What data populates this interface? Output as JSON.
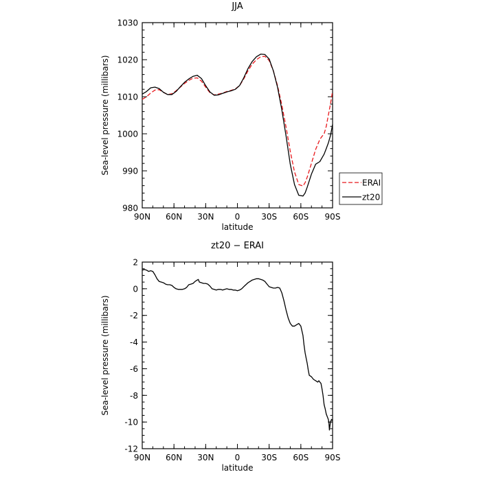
{
  "chart_data": [
    {
      "type": "line",
      "title": "JJA",
      "xlabel": "latitude",
      "ylabel": "Sea-level pressure (millibars)",
      "xlim": [
        90,
        -90
      ],
      "ylim": [
        980,
        1030
      ],
      "x_ticks": [
        {
          "value": 90,
          "label": "90N"
        },
        {
          "value": 60,
          "label": "60N"
        },
        {
          "value": 30,
          "label": "30N"
        },
        {
          "value": 0,
          "label": "0"
        },
        {
          "value": -30,
          "label": "30S"
        },
        {
          "value": -60,
          "label": "60S"
        },
        {
          "value": -90,
          "label": "90S"
        }
      ],
      "y_ticks": [
        980,
        990,
        1000,
        1010,
        1020,
        1030
      ],
      "x_minor_step": 10,
      "y_minor_step": 2,
      "legend": {
        "placement": "right"
      },
      "series": [
        {
          "name": "ERAI",
          "color": "#e8171b",
          "dash": "dashed",
          "x": [
            90,
            86,
            82,
            78,
            74,
            70,
            66,
            62,
            58,
            54,
            50,
            46,
            42,
            38,
            34,
            30,
            26,
            22,
            18,
            14,
            10,
            6,
            2,
            -2,
            -6,
            -10,
            -14,
            -18,
            -22,
            -26,
            -30,
            -34,
            -38,
            -42,
            -46,
            -50,
            -54,
            -58,
            -62,
            -64,
            -66,
            -70,
            -74,
            -78,
            -80,
            -82,
            -84,
            -86,
            -88,
            -90
          ],
          "y": [
            1009.3,
            1010.0,
            1011.0,
            1011.8,
            1011.9,
            1011.2,
            1010.6,
            1010.8,
            1011.6,
            1012.6,
            1013.6,
            1014.4,
            1015.0,
            1015.1,
            1014.2,
            1012.6,
            1011.1,
            1010.5,
            1010.7,
            1011.0,
            1011.4,
            1011.7,
            1012.1,
            1013.0,
            1014.8,
            1017.0,
            1018.8,
            1020.0,
            1020.8,
            1020.9,
            1019.8,
            1017.0,
            1012.9,
            1007.8,
            1001.8,
            995.3,
            989.7,
            986.3,
            985.9,
            986.8,
            988.3,
            992.0,
            995.8,
            998.5,
            999.3,
            1000.0,
            1002.0,
            1005.0,
            1008.0,
            1011.5
          ]
        },
        {
          "name": "zt20",
          "color": "#000000",
          "dash": "solid",
          "x": [
            90,
            86,
            82,
            78,
            74,
            70,
            66,
            62,
            58,
            54,
            50,
            46,
            42,
            38,
            34,
            30,
            26,
            22,
            18,
            14,
            10,
            6,
            2,
            -2,
            -6,
            -10,
            -14,
            -18,
            -22,
            -26,
            -30,
            -34,
            -38,
            -42,
            -46,
            -50,
            -54,
            -58,
            -62,
            -64,
            -66,
            -70,
            -74,
            -78,
            -80,
            -82,
            -84,
            -86,
            -88,
            -90
          ],
          "y": [
            1010.7,
            1011.4,
            1012.4,
            1012.6,
            1012.2,
            1011.2,
            1010.6,
            1010.6,
            1011.4,
            1012.7,
            1013.9,
            1014.8,
            1015.5,
            1015.8,
            1014.9,
            1013.0,
            1011.3,
            1010.4,
            1010.5,
            1010.9,
            1011.3,
            1011.6,
            1012.0,
            1013.0,
            1015.1,
            1017.6,
            1019.5,
            1020.8,
            1021.5,
            1021.4,
            1020.2,
            1017.0,
            1012.5,
            1006.5,
            999.4,
            991.8,
            986.3,
            983.4,
            983.2,
            984.0,
            985.6,
            989.1,
            991.8,
            992.5,
            993.5,
            994.5,
            996.0,
            997.5,
            999.5,
            1002.5
          ]
        }
      ]
    },
    {
      "type": "line",
      "title": "zt20 − ERAI",
      "xlabel": "latitude",
      "ylabel": "Sea-level pressure (millibars)",
      "xlim": [
        90,
        -90
      ],
      "ylim": [
        -12,
        2
      ],
      "x_ticks": [
        {
          "value": 90,
          "label": "90N"
        },
        {
          "value": 60,
          "label": "60N"
        },
        {
          "value": 30,
          "label": "30N"
        },
        {
          "value": 0,
          "label": "0"
        },
        {
          "value": -30,
          "label": "30S"
        },
        {
          "value": -60,
          "label": "60S"
        },
        {
          "value": -90,
          "label": "90S"
        }
      ],
      "y_ticks": [
        -12,
        -10,
        -8,
        -6,
        -4,
        -2,
        0,
        2
      ],
      "x_minor_step": 10,
      "y_minor_step": 0.5,
      "series": [
        {
          "name": "",
          "color": "#000000",
          "dash": "solid",
          "x": [
            90,
            88,
            86,
            84,
            82,
            80,
            78,
            76,
            74,
            72,
            70,
            68,
            66,
            64,
            62,
            60,
            58,
            56,
            54,
            52,
            50,
            48,
            46,
            44,
            42,
            40,
            38,
            37,
            36,
            34,
            32,
            30,
            28,
            26,
            24,
            22,
            20,
            18,
            16,
            14,
            12,
            10,
            8,
            6,
            4,
            2,
            0,
            -2,
            -4,
            -6,
            -8,
            -10,
            -12,
            -14,
            -16,
            -18,
            -20,
            -22,
            -24,
            -26,
            -28,
            -30,
            -32,
            -34,
            -36,
            -38,
            -40,
            -42,
            -44,
            -46,
            -48,
            -50,
            -52,
            -54,
            -56,
            -58,
            -60,
            -62,
            -63,
            -64,
            -65,
            -66,
            -67,
            -68,
            -70,
            -72,
            -74,
            -76,
            -77,
            -78,
            -79,
            -80,
            -81,
            -82,
            -83,
            -84,
            -85,
            -86,
            -86.5,
            -87,
            -88,
            -89,
            -90
          ],
          "y": [
            1.4,
            1.45,
            1.4,
            1.3,
            1.35,
            1.3,
            1.05,
            0.75,
            0.55,
            0.5,
            0.45,
            0.35,
            0.3,
            0.3,
            0.25,
            0.1,
            0.0,
            -0.05,
            -0.05,
            -0.05,
            0.0,
            0.1,
            0.3,
            0.35,
            0.4,
            0.55,
            0.65,
            0.7,
            0.5,
            0.45,
            0.4,
            0.4,
            0.35,
            0.2,
            0.0,
            -0.05,
            -0.1,
            -0.05,
            -0.05,
            -0.1,
            -0.05,
            0.0,
            -0.05,
            -0.05,
            -0.1,
            -0.1,
            -0.15,
            -0.1,
            0.0,
            0.15,
            0.3,
            0.45,
            0.55,
            0.65,
            0.7,
            0.75,
            0.75,
            0.7,
            0.65,
            0.55,
            0.35,
            0.15,
            0.1,
            0.05,
            0.05,
            0.1,
            0.05,
            -0.3,
            -0.9,
            -1.6,
            -2.2,
            -2.6,
            -2.8,
            -2.8,
            -2.7,
            -2.6,
            -2.8,
            -3.5,
            -4.2,
            -4.8,
            -5.2,
            -5.6,
            -6.1,
            -6.5,
            -6.6,
            -6.8,
            -6.9,
            -7.0,
            -6.9,
            -7.0,
            -7.1,
            -7.5,
            -8.0,
            -8.7,
            -9.0,
            -9.4,
            -9.6,
            -9.8,
            -10.0,
            -10.6,
            -10.0,
            -9.8,
            -9.9
          ]
        }
      ]
    }
  ]
}
